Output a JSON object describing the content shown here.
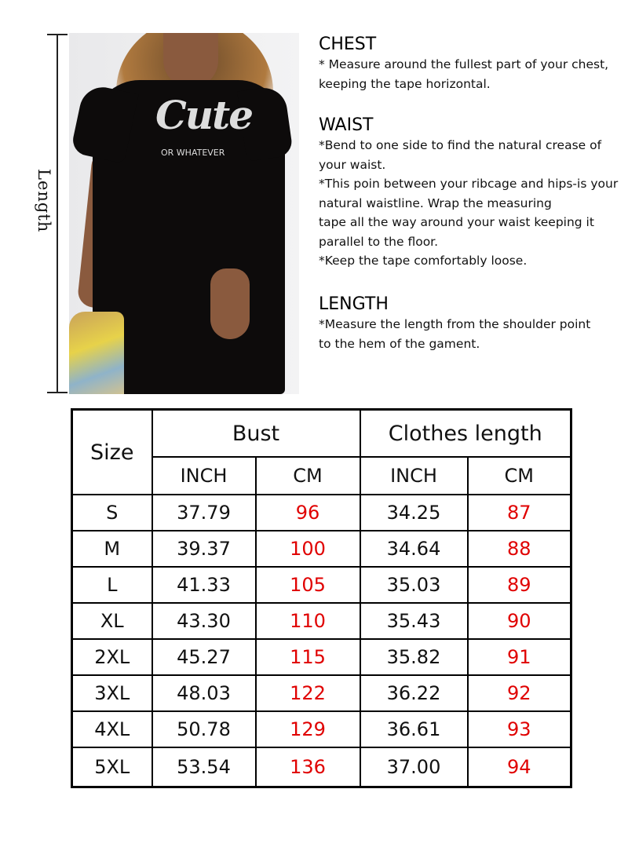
{
  "figure": {
    "length_label": "Length",
    "print_main": "Cute",
    "print_sub": "OR WHATEVER"
  },
  "instructions": [
    {
      "heading": "CHEST",
      "lines": [
        "* Measure around the fullest part of your chest,",
        "keeping the tape horizontal."
      ]
    },
    {
      "heading": "WAIST",
      "lines": [
        "*Bend to one side to find the natural crease of",
        "your waist.",
        "*This poin between your ribcage and hips-is your",
        "natural waistline. Wrap the measuring",
        "tape all the way around your waist keeping it",
        "parallel to the floor.",
        "*Keep the tape comfortably loose."
      ]
    },
    {
      "heading": "LENGTH",
      "lines": [
        "*Measure the length from the shoulder point",
        "to the hem of the gament."
      ]
    }
  ],
  "size_table": {
    "size_header": "Size",
    "group_headers": [
      "Bust",
      "Clothes length"
    ],
    "unit_headers": [
      "INCH",
      "CM",
      "INCH",
      "CM"
    ],
    "cm_color": "#e00000",
    "rows": [
      [
        "S",
        "37.79",
        "96",
        "34.25",
        "87"
      ],
      [
        "M",
        "39.37",
        "100",
        "34.64",
        "88"
      ],
      [
        "L",
        "41.33",
        "105",
        "35.03",
        "89"
      ],
      [
        "XL",
        "43.30",
        "110",
        "35.43",
        "90"
      ],
      [
        "2XL",
        "45.27",
        "115",
        "35.82",
        "91"
      ],
      [
        "3XL",
        "48.03",
        "122",
        "36.22",
        "92"
      ],
      [
        "4XL",
        "50.78",
        "129",
        "36.61",
        "93"
      ],
      [
        "5XL",
        "53.54",
        "136",
        "37.00",
        "94"
      ]
    ]
  }
}
